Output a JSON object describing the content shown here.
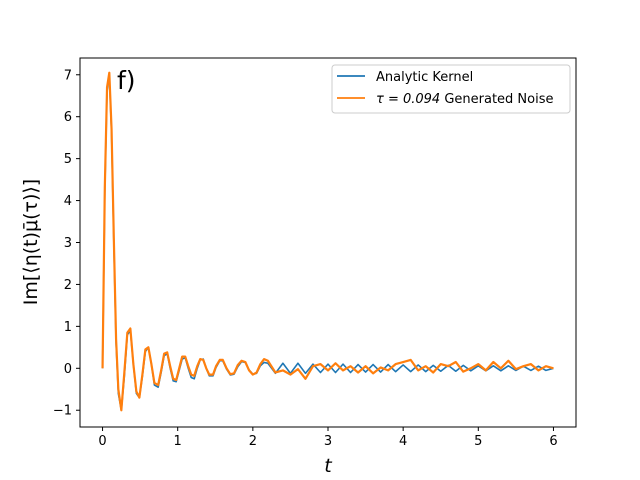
{
  "chart_data": {
    "type": "line",
    "panel_label": "f)",
    "xlabel": "t",
    "ylabel": "Im[⟨η(t)μ̄(τ)⟩]",
    "xlim": [
      -0.3,
      6.3
    ],
    "ylim": [
      -1.4,
      7.4
    ],
    "xticks": [
      0,
      1,
      2,
      3,
      4,
      5,
      6
    ],
    "yticks": [
      -1,
      0,
      1,
      2,
      3,
      4,
      5,
      6,
      7
    ],
    "grid": false,
    "legend_position": "top-right",
    "legend": [
      {
        "label": "Analytic Kernel",
        "color": "#1f77b4"
      },
      {
        "label_prefix": "τ = 0.094",
        "label_suffix": " Generated Noise",
        "color": "#ff7f0e"
      }
    ],
    "x": [
      0.0,
      0.03,
      0.06,
      0.09,
      0.12,
      0.15,
      0.18,
      0.21,
      0.25,
      0.29,
      0.33,
      0.37,
      0.41,
      0.45,
      0.49,
      0.53,
      0.57,
      0.61,
      0.65,
      0.69,
      0.74,
      0.78,
      0.82,
      0.86,
      0.9,
      0.94,
      0.98,
      1.02,
      1.06,
      1.1,
      1.14,
      1.18,
      1.22,
      1.26,
      1.3,
      1.34,
      1.38,
      1.42,
      1.47,
      1.51,
      1.56,
      1.6,
      1.65,
      1.7,
      1.75,
      1.8,
      1.85,
      1.9,
      1.95,
      2.0,
      2.05,
      2.1,
      2.15,
      2.2,
      2.3,
      2.4,
      2.5,
      2.6,
      2.7,
      2.8,
      2.9,
      3.0,
      3.1,
      3.2,
      3.3,
      3.4,
      3.5,
      3.6,
      3.7,
      3.8,
      3.9,
      4.0,
      4.1,
      4.2,
      4.3,
      4.4,
      4.5,
      4.6,
      4.7,
      4.8,
      4.9,
      5.0,
      5.1,
      5.2,
      5.3,
      5.4,
      5.5,
      5.6,
      5.7,
      5.8,
      5.9,
      6.0
    ],
    "series": [
      {
        "name": "Analytic Kernel",
        "color": "#1f77b4",
        "y": [
          0.0,
          4.2,
          6.6,
          7.0,
          5.6,
          3.0,
          0.6,
          -0.6,
          -1.0,
          -0.2,
          0.8,
          0.9,
          0.1,
          -0.6,
          -0.7,
          -0.2,
          0.4,
          0.5,
          0.1,
          -0.4,
          -0.45,
          -0.1,
          0.3,
          0.35,
          0.0,
          -0.3,
          -0.32,
          -0.05,
          0.22,
          0.25,
          0.0,
          -0.22,
          -0.25,
          0.0,
          0.2,
          0.22,
          0.0,
          -0.18,
          -0.18,
          0.02,
          0.18,
          0.18,
          -0.02,
          -0.16,
          -0.14,
          0.04,
          0.16,
          0.14,
          -0.04,
          -0.14,
          -0.12,
          0.06,
          0.14,
          0.12,
          -0.12,
          0.12,
          -0.12,
          0.12,
          -0.12,
          0.1,
          -0.1,
          0.1,
          -0.1,
          0.1,
          -0.1,
          0.09,
          -0.09,
          0.09,
          -0.09,
          0.09,
          -0.08,
          0.08,
          -0.08,
          0.08,
          -0.08,
          0.07,
          -0.07,
          0.07,
          -0.07,
          0.07,
          -0.06,
          0.06,
          -0.06,
          0.06,
          -0.06,
          0.06,
          -0.05,
          0.05,
          -0.05,
          0.05,
          -0.05,
          0.0
        ]
      },
      {
        "name": "τ = 0.094 Generated Noise",
        "color": "#ff7f0e",
        "y": [
          0.0,
          4.3,
          6.7,
          7.05,
          5.7,
          3.1,
          0.7,
          -0.5,
          -1.0,
          -0.1,
          0.85,
          0.95,
          0.1,
          -0.55,
          -0.7,
          -0.15,
          0.45,
          0.5,
          0.1,
          -0.35,
          -0.4,
          -0.05,
          0.35,
          0.38,
          0.05,
          -0.25,
          -0.28,
          0.0,
          0.28,
          0.28,
          0.05,
          -0.15,
          -0.18,
          0.05,
          0.22,
          0.2,
          0.0,
          -0.15,
          -0.15,
          0.05,
          0.2,
          0.2,
          0.0,
          -0.14,
          -0.12,
          0.08,
          0.18,
          0.15,
          -0.05,
          -0.15,
          -0.1,
          0.1,
          0.22,
          0.18,
          -0.1,
          -0.05,
          -0.15,
          -0.02,
          -0.25,
          0.05,
          0.1,
          -0.05,
          0.12,
          -0.05,
          0.05,
          -0.1,
          0.05,
          -0.12,
          0.02,
          -0.05,
          0.1,
          0.15,
          0.2,
          -0.05,
          0.05,
          -0.1,
          0.1,
          0.05,
          0.15,
          -0.08,
          0.0,
          0.1,
          -0.05,
          0.15,
          0.0,
          0.18,
          -0.02,
          0.05,
          0.1,
          -0.05,
          0.05,
          0.0
        ]
      }
    ]
  }
}
